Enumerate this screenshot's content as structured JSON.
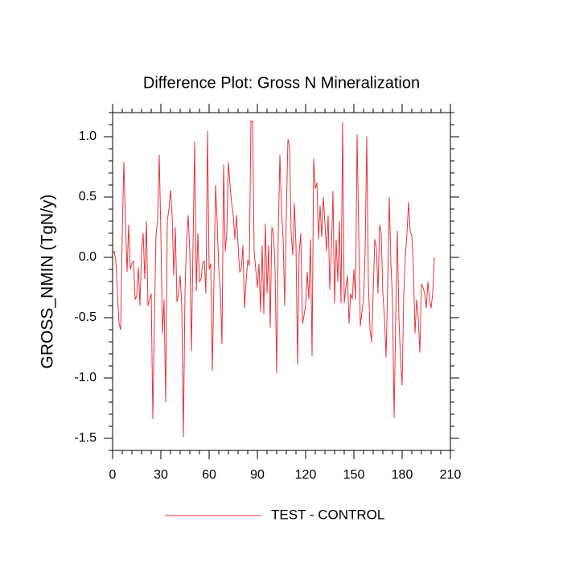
{
  "chart_data": {
    "type": "line",
    "title": "Difference Plot: Gross N Mineralization",
    "y_label": "GROSS_NMIN  (TgN/y)",
    "xlim": [
      0,
      210
    ],
    "xticks": [
      0,
      30,
      60,
      90,
      120,
      150,
      180,
      210
    ],
    "ylim": [
      -1.6,
      1.2
    ],
    "yticks": [
      -1.5,
      {
        "value": -1.0,
        "label": "-1.0"
      },
      -0.5,
      {
        "value": 0.0,
        "label": "0.0"
      },
      0.5,
      {
        "value": 1.0,
        "label": "1.0"
      }
    ],
    "legend": "bottom",
    "series": [
      {
        "name": "TEST - CONTROL",
        "color": "#e8343a",
        "x": [
          0,
          1,
          2,
          3,
          4,
          5,
          6,
          7,
          8,
          9,
          10,
          11,
          12,
          13,
          14,
          15,
          16,
          17,
          18,
          19,
          20,
          21,
          22,
          23,
          24,
          25,
          26,
          27,
          28,
          29,
          30,
          31,
          32,
          33,
          34,
          35,
          36,
          37,
          38,
          39,
          40,
          41,
          42,
          43,
          44,
          45,
          46,
          47,
          48,
          49,
          50,
          51,
          52,
          53,
          54,
          55,
          56,
          57,
          58,
          59,
          60,
          61,
          62,
          63,
          64,
          65,
          66,
          67,
          68,
          69,
          70,
          71,
          72,
          73,
          74,
          75,
          76,
          77,
          78,
          79,
          80,
          81,
          82,
          83,
          84,
          85,
          86,
          87,
          88,
          89,
          90,
          91,
          92,
          93,
          94,
          95,
          96,
          97,
          98,
          99,
          100,
          101,
          102,
          103,
          104,
          105,
          106,
          107,
          108,
          109,
          110,
          111,
          112,
          113,
          114,
          115,
          116,
          117,
          118,
          119,
          120,
          121,
          122,
          123,
          124,
          125,
          126,
          127,
          128,
          129,
          130,
          131,
          132,
          133,
          134,
          135,
          136,
          137,
          138,
          139,
          140,
          141,
          142,
          143,
          144,
          145,
          146,
          147,
          148,
          149,
          150,
          151,
          152,
          153,
          154,
          155,
          156,
          157,
          158,
          159,
          160,
          161,
          162,
          163,
          164,
          165,
          166,
          167,
          168,
          169,
          170,
          171,
          172,
          173,
          174,
          175,
          176,
          177,
          178,
          179,
          180,
          181,
          182,
          183,
          184,
          185,
          186,
          187,
          188,
          189,
          190,
          191,
          192,
          193,
          194,
          195,
          196,
          197,
          198,
          199,
          200
        ],
        "values": [
          0.03,
          0.05,
          -0.02,
          -0.3,
          -0.55,
          -0.6,
          0.2,
          0.79,
          0.3,
          -0.12,
          0.27,
          -0.1,
          -0.05,
          -0.03,
          -0.35,
          -0.32,
          -0.08,
          -0.4,
          0.05,
          0.2,
          -0.18,
          0.3,
          -0.4,
          -0.35,
          -0.3,
          -1.34,
          -0.5,
          0.2,
          0.3,
          0.85,
          0.2,
          -0.63,
          -0.35,
          -1.2,
          0.3,
          0.4,
          0.56,
          0.35,
          -0.15,
          0.25,
          -0.37,
          -0.3,
          -0.15,
          -0.4,
          -1.49,
          -0.3,
          0.15,
          0.35,
          0.05,
          -0.78,
          0.1,
          0.96,
          -0.28,
          0.2,
          -0.2,
          -0.18,
          -0.05,
          -0.03,
          -0.3,
          1.05,
          -0.1,
          -0.05,
          -0.94,
          -0.2,
          0.6,
          0.3,
          -0.1,
          -0.28,
          -0.72,
          0.77,
          0.05,
          0.2,
          0.79,
          0.6,
          0.45,
          0.35,
          0.15,
          0.35,
          0.1,
          -0.12,
          -0.1,
          0.1,
          -0.42,
          -0.2,
          -0.02,
          -0.07,
          1.13,
          1.13,
          0.05,
          -0.1,
          -0.25,
          -0.05,
          -0.45,
          0.1,
          -0.47,
          0.28,
          -0.3,
          0.1,
          -0.58,
          0.25,
          0.2,
          -0.1,
          -0.96,
          0.2,
          0.85,
          0.4,
          0.15,
          -0.4,
          0.35,
          0.98,
          0.92,
          0.2,
          0.02,
          0.45,
          0.1,
          -0.89,
          0.05,
          0.2,
          -0.55,
          -0.48,
          -0.4,
          -0.12,
          -0.35,
          0.15,
          -0.82,
          0.82,
          0.57,
          0.62,
          0.15,
          0.43,
          0.17,
          0.5,
          0.28,
          0.05,
          0.35,
          -0.27,
          0.05,
          0.55,
          -0.38,
          0.15,
          -0.2,
          0.3,
          -0.38,
          1.12,
          -0.38,
          -0.25,
          -0.15,
          -0.55,
          -0.3,
          -0.35,
          -0.1,
          -0.35,
          1.02,
          0.2,
          -0.57,
          -0.45,
          -0.35,
          0.05,
          1.0,
          -0.2,
          -0.6,
          -0.7,
          -0.3,
          0.15,
          0.08,
          -0.3,
          0.27,
          0.2,
          -0.3,
          -0.5,
          -0.83,
          -0.25,
          0.5,
          -0.05,
          -0.35,
          -1.33,
          -0.5,
          0.22,
          -0.5,
          -0.85,
          -1.06,
          -0.3,
          0.0,
          0.2,
          0.46,
          0.22,
          0.18,
          -0.1,
          -0.63,
          -0.35,
          -0.5,
          -0.79,
          -0.22,
          -0.25,
          -0.3,
          -0.42,
          -0.2,
          -0.35,
          -0.42,
          -0.3,
          0.0
        ]
      }
    ]
  }
}
